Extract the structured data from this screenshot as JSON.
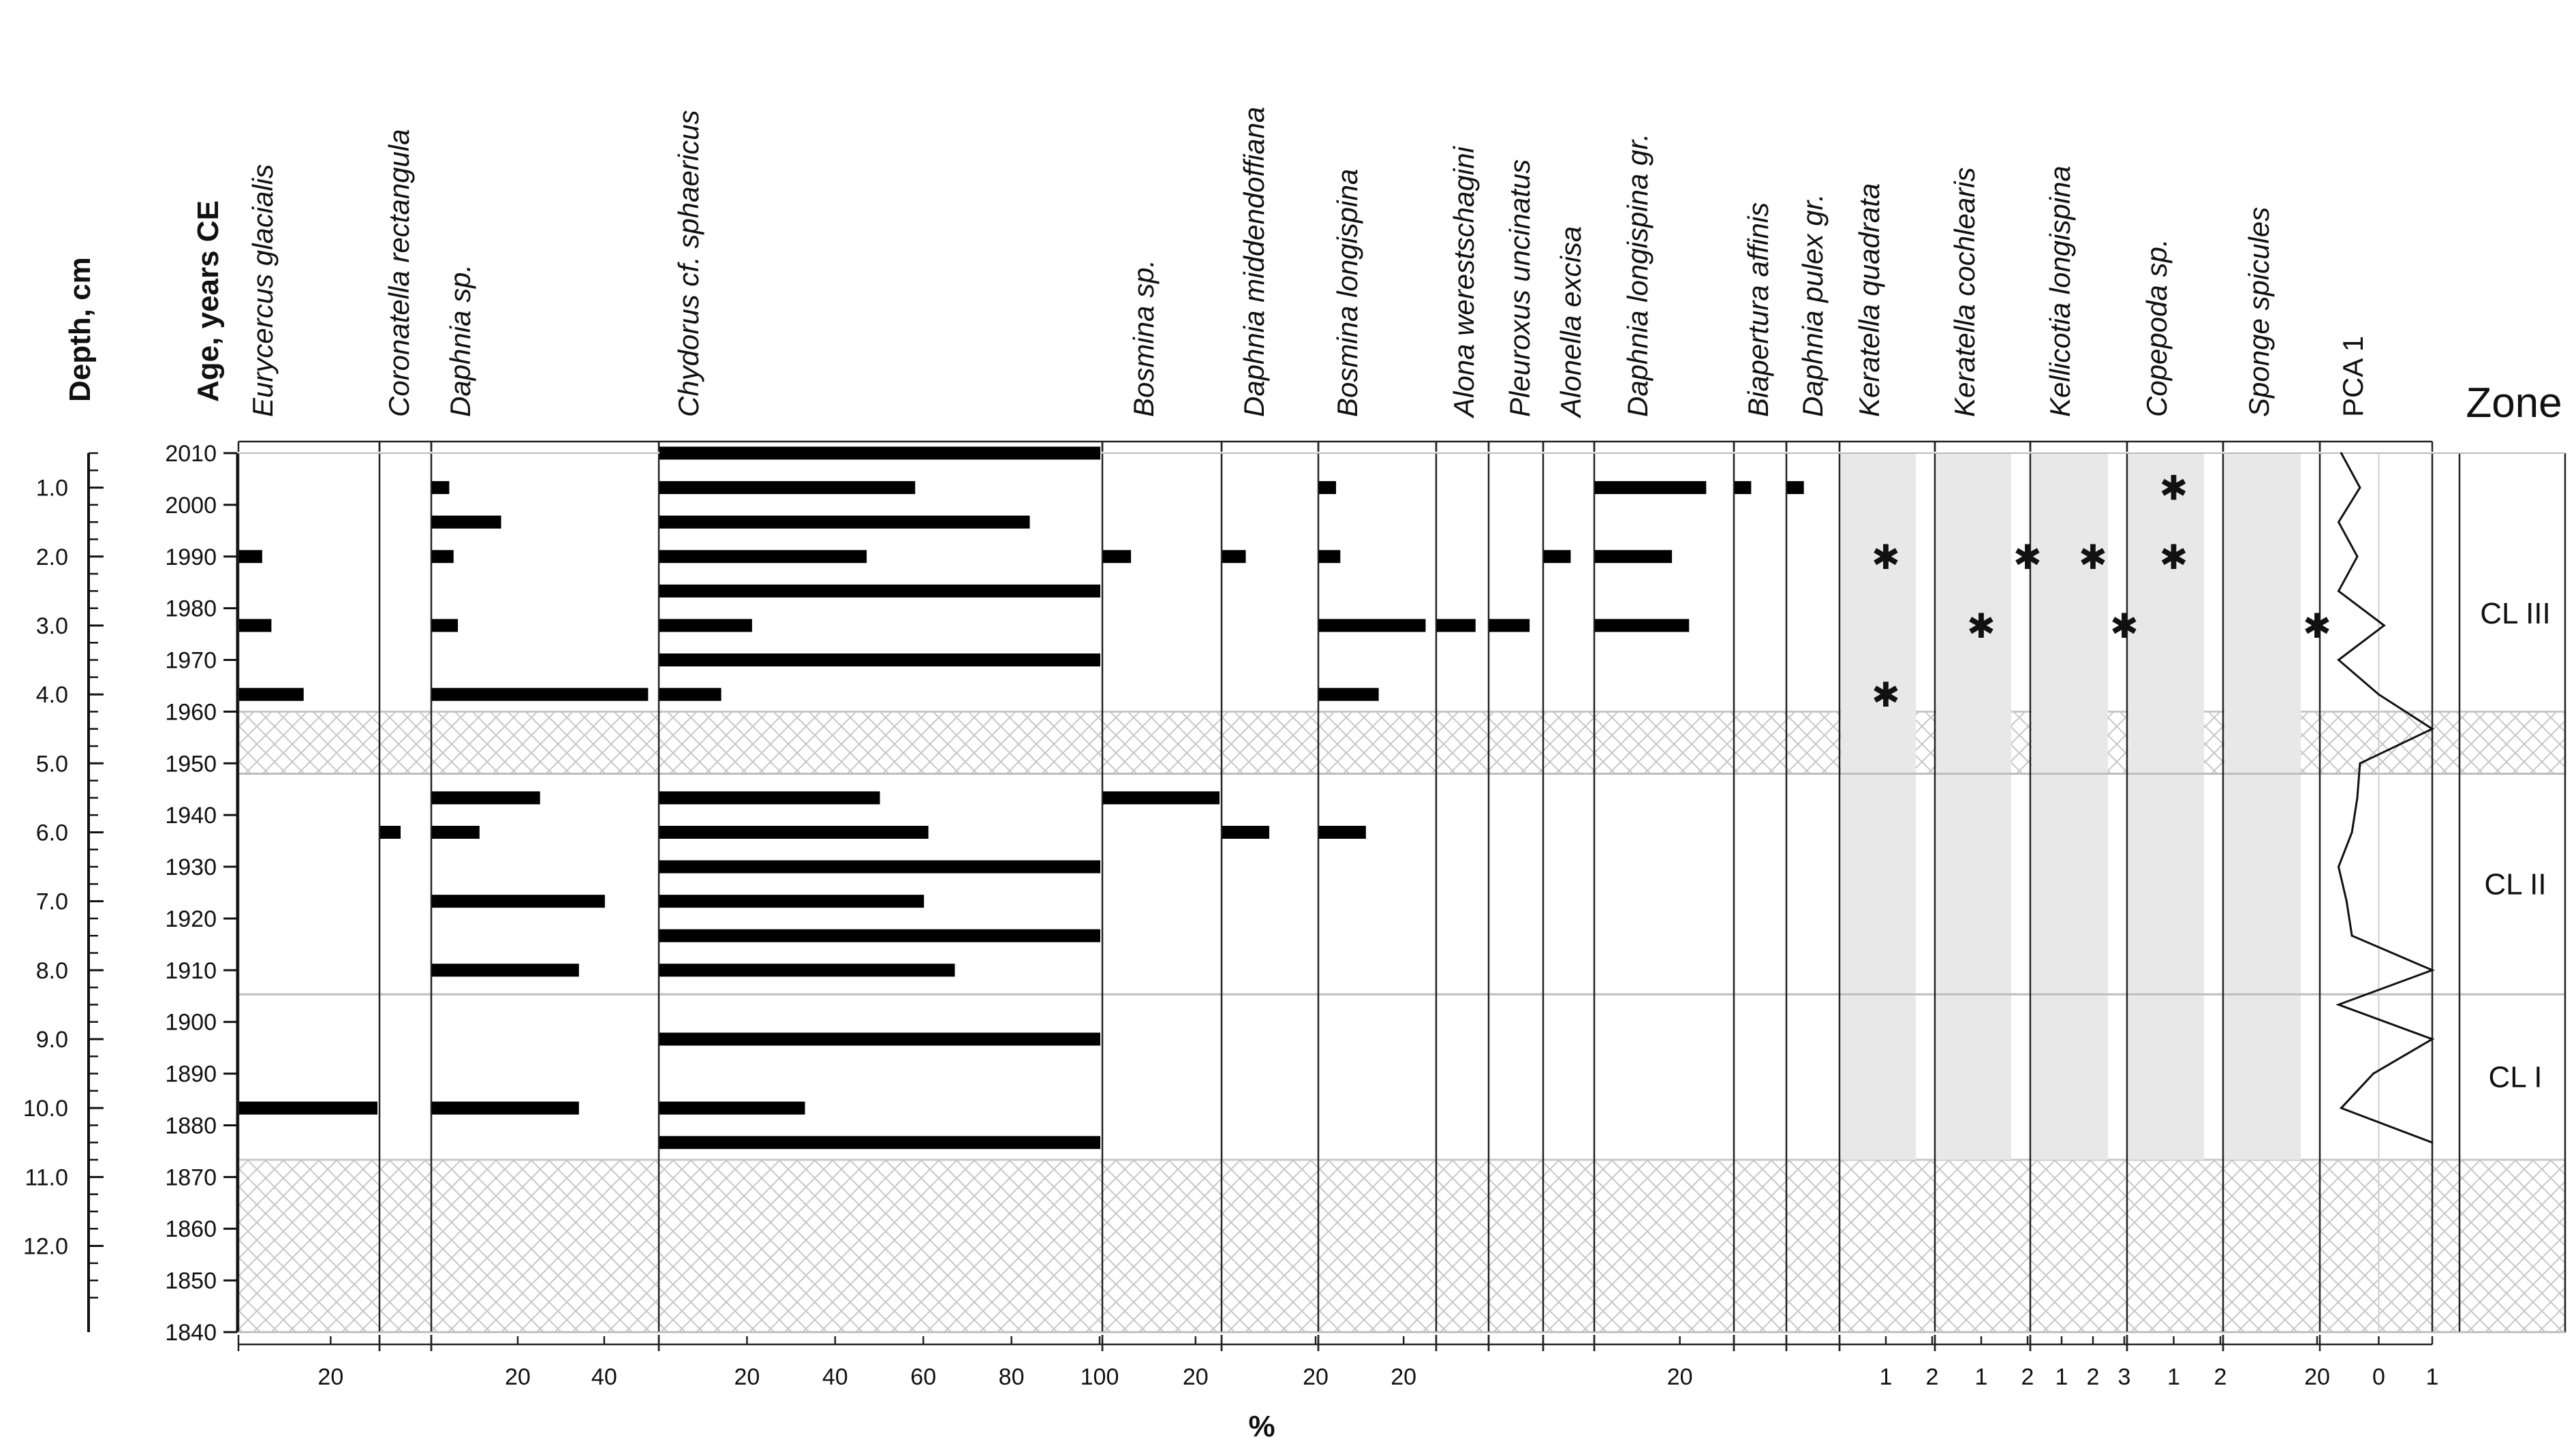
{
  "chart_data": {
    "type": "stratigraphic-bar",
    "depth_label": "Depth, cm",
    "age_label": "Age, years CE",
    "xlabel": "%",
    "pca_label": "PCA 1",
    "zone_label": "Zone",
    "depth_ticks": [
      "1.0",
      "2.0",
      "3.0",
      "4.0",
      "5.0",
      "6.0",
      "7.0",
      "8.0",
      "9.0",
      "10.0",
      "11.0",
      "12.0"
    ],
    "depth_values": [
      1,
      2,
      3,
      4,
      5,
      6,
      7,
      8,
      9,
      10,
      11,
      12
    ],
    "age_ticks": [
      "2010",
      "2000",
      "1990",
      "1980",
      "1970",
      "1960",
      "1950",
      "1940",
      "1930",
      "1920",
      "1910",
      "1900",
      "1890",
      "1880",
      "1870",
      "1860",
      "1850",
      "1840"
    ],
    "age_depths": [
      0.5,
      1.25,
      2.0,
      2.75,
      3.5,
      4.25,
      5.0,
      5.75,
      6.5,
      7.25,
      8.0,
      8.75,
      9.5,
      10.25,
      11.0,
      11.75,
      12.5,
      13.25
    ],
    "depth_range": [
      0.5,
      13.25
    ],
    "hatched_intervals": [
      [
        4.25,
        5.15
      ],
      [
        10.75,
        13.25
      ]
    ],
    "zones": [
      {
        "name": "CL III",
        "top": 0.5,
        "bottom": 5.15
      },
      {
        "name": "CL II",
        "top": 5.15,
        "bottom": 8.35
      },
      {
        "name": "CL I",
        "top": 8.35,
        "bottom": 10.75
      }
    ],
    "series": [
      {
        "name": "Eurycercus glacialis",
        "kind": "bar",
        "max": 30,
        "ticks": [
          "20"
        ],
        "tick_values": [
          20
        ],
        "points": [
          {
            "depth": 2.0,
            "value": 5
          },
          {
            "depth": 3.0,
            "value": 7
          },
          {
            "depth": 4.0,
            "value": 14
          },
          {
            "depth": 10.0,
            "value": 30
          }
        ]
      },
      {
        "name": "Coronatella rectangula",
        "kind": "bar",
        "max": 12,
        "ticks": [],
        "tick_values": [],
        "points": [
          {
            "depth": 6.0,
            "value": 5
          }
        ]
      },
      {
        "name": "Daphnia sp.",
        "kind": "bar",
        "max": 52,
        "ticks": [
          "20",
          "40"
        ],
        "tick_values": [
          20,
          40
        ],
        "points": [
          {
            "depth": 1.0,
            "value": 4
          },
          {
            "depth": 1.5,
            "value": 16
          },
          {
            "depth": 2.0,
            "value": 5
          },
          {
            "depth": 3.0,
            "value": 6
          },
          {
            "depth": 4.0,
            "value": 50
          },
          {
            "depth": 5.5,
            "value": 25
          },
          {
            "depth": 6.0,
            "value": 11
          },
          {
            "depth": 7.0,
            "value": 40
          },
          {
            "depth": 8.0,
            "value": 34
          },
          {
            "depth": 10.0,
            "value": 34
          }
        ]
      },
      {
        "name": "Chydorus cf. sphaericus",
        "kind": "bar",
        "max": 100,
        "ticks": [
          "20",
          "40",
          "60",
          "80",
          "100"
        ],
        "tick_values": [
          20,
          40,
          60,
          80,
          100
        ],
        "points": [
          {
            "depth": 0.5,
            "value": 100
          },
          {
            "depth": 1.0,
            "value": 58
          },
          {
            "depth": 1.5,
            "value": 84
          },
          {
            "depth": 2.0,
            "value": 47
          },
          {
            "depth": 2.5,
            "value": 100
          },
          {
            "depth": 3.0,
            "value": 21
          },
          {
            "depth": 3.5,
            "value": 100
          },
          {
            "depth": 4.0,
            "value": 14
          },
          {
            "depth": 5.5,
            "value": 50
          },
          {
            "depth": 6.0,
            "value": 61
          },
          {
            "depth": 6.5,
            "value": 100
          },
          {
            "depth": 7.0,
            "value": 60
          },
          {
            "depth": 7.5,
            "value": 100
          },
          {
            "depth": 8.0,
            "value": 67
          },
          {
            "depth": 9.0,
            "value": 100
          },
          {
            "depth": 10.0,
            "value": 33
          },
          {
            "depth": 10.5,
            "value": 100
          }
        ]
      },
      {
        "name": "Bosmina sp.",
        "kind": "bar",
        "max": 25,
        "ticks": [
          "20"
        ],
        "tick_values": [
          20
        ],
        "points": [
          {
            "depth": 2.0,
            "value": 6
          },
          {
            "depth": 5.5,
            "value": 25
          }
        ]
      },
      {
        "name": "Daphnia middendoffiana",
        "kind": "bar",
        "max": 20,
        "ticks": [
          "20"
        ],
        "tick_values": [
          20
        ],
        "points": [
          {
            "depth": 2.0,
            "value": 5
          },
          {
            "depth": 6.0,
            "value": 10
          }
        ]
      },
      {
        "name": "Bosmina longispina",
        "kind": "bar",
        "max": 27,
        "ticks": [
          "20"
        ],
        "tick_values": [
          20
        ],
        "points": [
          {
            "depth": 1.0,
            "value": 4
          },
          {
            "depth": 2.0,
            "value": 5
          },
          {
            "depth": 3.0,
            "value": 25
          },
          {
            "depth": 4.0,
            "value": 14
          },
          {
            "depth": 6.0,
            "value": 11
          }
        ]
      },
      {
        "name": "Alona werestschagini",
        "kind": "bar",
        "max": 9,
        "ticks": [],
        "tick_values": [],
        "points": [
          {
            "depth": 3.0,
            "value": 7
          }
        ]
      },
      {
        "name": "Pleuroxus uncinatus",
        "kind": "bar",
        "max": 9,
        "ticks": [],
        "tick_values": [],
        "points": [
          {
            "depth": 3.0,
            "value": 7
          }
        ]
      },
      {
        "name": "Alonella excisa",
        "kind": "bar",
        "max": 9,
        "ticks": [],
        "tick_values": [],
        "points": [
          {
            "depth": 2.0,
            "value": 5
          }
        ]
      },
      {
        "name": "Daphnia longispina gr.",
        "kind": "bar",
        "max": 32,
        "ticks": [
          "20"
        ],
        "tick_values": [
          20
        ],
        "points": [
          {
            "depth": 1.0,
            "value": 26
          },
          {
            "depth": 2.0,
            "value": 18
          },
          {
            "depth": 3.0,
            "value": 22
          }
        ]
      },
      {
        "name": "Biapertura  affinis",
        "kind": "bar",
        "max": 12,
        "ticks": [],
        "tick_values": [],
        "points": [
          {
            "depth": 1.0,
            "value": 4
          }
        ]
      },
      {
        "name": "Daphnia pulex gr.",
        "kind": "bar",
        "max": 12,
        "ticks": [],
        "tick_values": [],
        "points": [
          {
            "depth": 1.0,
            "value": 4
          }
        ]
      },
      {
        "name": "Keratella quadrata",
        "kind": "marker",
        "max": 2,
        "ticks": [
          "1",
          "2"
        ],
        "tick_values": [
          1,
          2
        ],
        "points": [
          {
            "depth": 2.0,
            "value": 1
          },
          {
            "depth": 4.0,
            "value": 1
          }
        ]
      },
      {
        "name": "Keratella cochlearis",
        "kind": "marker",
        "max": 2,
        "ticks": [
          "1",
          "2"
        ],
        "tick_values": [
          1,
          2
        ],
        "points": [
          {
            "depth": 2.0,
            "value": 2
          },
          {
            "depth": 3.0,
            "value": 1
          }
        ]
      },
      {
        "name": "Kellicotia longispina",
        "kind": "marker",
        "max": 3,
        "ticks": [
          "1",
          "2",
          "3"
        ],
        "tick_values": [
          1,
          2,
          3
        ],
        "points": [
          {
            "depth": 2.0,
            "value": 2
          },
          {
            "depth": 3.0,
            "value": 3
          }
        ]
      },
      {
        "name": "Copepoda sp.",
        "kind": "marker",
        "max": 2,
        "ticks": [
          "1",
          "2"
        ],
        "tick_values": [
          1,
          2
        ],
        "points": [
          {
            "depth": 1.0,
            "value": 1
          },
          {
            "depth": 2.0,
            "value": 1
          }
        ]
      },
      {
        "name": "Sponge spicules",
        "kind": "marker",
        "max": 20,
        "ticks": [
          "20"
        ],
        "tick_values": [
          20
        ],
        "points": [
          {
            "depth": 3.0,
            "value": 20
          }
        ]
      }
    ],
    "pca": {
      "ticks": [
        "0",
        "1"
      ],
      "tick_values": [
        0,
        1
      ],
      "range": [
        -1.1,
        1.0
      ],
      "points": [
        {
          "depth": 0.5,
          "value": -0.7
        },
        {
          "depth": 1.0,
          "value": -0.35
        },
        {
          "depth": 1.5,
          "value": -0.75
        },
        {
          "depth": 2.0,
          "value": -0.4
        },
        {
          "depth": 2.5,
          "value": -0.75
        },
        {
          "depth": 3.0,
          "value": 0.1
        },
        {
          "depth": 3.5,
          "value": -0.75
        },
        {
          "depth": 4.0,
          "value": 0.0
        },
        {
          "depth": 4.5,
          "value": 1.0
        },
        {
          "depth": 5.0,
          "value": -0.35
        },
        {
          "depth": 5.5,
          "value": -0.4
        },
        {
          "depth": 6.0,
          "value": -0.5
        },
        {
          "depth": 6.5,
          "value": -0.75
        },
        {
          "depth": 7.0,
          "value": -0.6
        },
        {
          "depth": 7.5,
          "value": -0.5
        },
        {
          "depth": 8.0,
          "value": 1.0
        },
        {
          "depth": 8.5,
          "value": -0.75
        },
        {
          "depth": 9.0,
          "value": 1.0
        },
        {
          "depth": 9.5,
          "value": -0.1
        },
        {
          "depth": 10.0,
          "value": -0.7
        },
        {
          "depth": 10.5,
          "value": 1.0
        }
      ]
    }
  }
}
